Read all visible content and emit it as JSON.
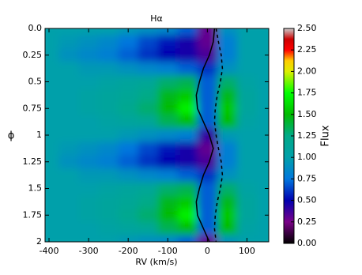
{
  "chart_data": {
    "type": "heatmap",
    "title": "Hα",
    "x_label": "RV (km/s)",
    "y_label": "ϕ",
    "colorbar_label": "Flux",
    "x": [
      -400,
      -350,
      -300,
      -250,
      -200,
      -150,
      -100,
      -50,
      0,
      50,
      100,
      150
    ],
    "y": [
      0,
      0.125,
      0.25,
      0.375,
      0.5,
      0.625,
      0.75,
      0.875,
      1,
      1.125,
      1.25,
      1.375,
      1.5,
      1.625,
      1.75,
      1.875,
      2
    ],
    "z": [
      [
        1.0,
        1.0,
        1.0,
        1.0,
        0.95,
        0.9,
        0.85,
        0.7,
        0.3,
        0.9,
        1.0,
        1.0
      ],
      [
        1.0,
        0.95,
        0.9,
        0.85,
        0.75,
        0.65,
        0.55,
        0.45,
        0.3,
        0.8,
        1.0,
        1.0
      ],
      [
        1.0,
        0.9,
        0.85,
        0.8,
        0.7,
        0.6,
        0.5,
        0.45,
        0.35,
        0.8,
        1.0,
        1.0
      ],
      [
        1.0,
        1.0,
        0.95,
        0.95,
        0.9,
        0.85,
        0.8,
        0.7,
        0.6,
        0.9,
        1.0,
        1.0
      ],
      [
        1.0,
        1.0,
        1.0,
        1.05,
        1.1,
        1.15,
        1.3,
        1.35,
        0.7,
        1.3,
        1.05,
        1.0
      ],
      [
        1.0,
        1.0,
        1.05,
        1.1,
        1.15,
        1.25,
        1.45,
        1.55,
        0.7,
        1.45,
        1.1,
        1.0
      ],
      [
        1.0,
        1.0,
        1.05,
        1.1,
        1.2,
        1.3,
        1.5,
        1.7,
        0.7,
        1.55,
        1.1,
        1.0
      ],
      [
        1.0,
        1.0,
        1.0,
        1.05,
        1.1,
        1.15,
        1.35,
        1.5,
        0.7,
        1.5,
        1.05,
        1.0
      ],
      [
        1.0,
        1.0,
        1.0,
        1.0,
        0.95,
        0.9,
        0.85,
        0.8,
        0.4,
        0.95,
        1.0,
        1.0
      ],
      [
        1.0,
        0.95,
        0.9,
        0.85,
        0.75,
        0.65,
        0.55,
        0.45,
        0.3,
        0.8,
        1.0,
        1.0
      ],
      [
        1.0,
        0.9,
        0.85,
        0.8,
        0.7,
        0.6,
        0.5,
        0.45,
        0.35,
        0.8,
        1.0,
        1.0
      ],
      [
        1.0,
        1.0,
        0.95,
        0.95,
        0.9,
        0.85,
        0.8,
        0.7,
        0.6,
        0.9,
        1.0,
        1.0
      ],
      [
        1.0,
        1.0,
        1.0,
        1.05,
        1.1,
        1.15,
        1.3,
        1.35,
        0.7,
        1.3,
        1.05,
        1.0
      ],
      [
        1.0,
        1.0,
        1.05,
        1.1,
        1.15,
        1.25,
        1.45,
        1.55,
        0.7,
        1.45,
        1.1,
        1.0
      ],
      [
        1.0,
        1.0,
        1.05,
        1.1,
        1.2,
        1.3,
        1.5,
        1.7,
        0.7,
        1.55,
        1.1,
        1.0
      ],
      [
        1.0,
        1.0,
        1.0,
        1.05,
        1.1,
        1.15,
        1.35,
        1.5,
        0.7,
        1.5,
        1.05,
        1.0
      ],
      [
        1.0,
        1.0,
        1.0,
        1.0,
        0.95,
        0.9,
        0.85,
        0.7,
        0.3,
        0.9,
        1.0,
        1.0
      ]
    ],
    "curves": [
      {
        "style": "solid",
        "color": "#000000",
        "x": [
          18,
          15,
          5,
          -10,
          -20,
          -28,
          -25,
          -10,
          5,
          15,
          5,
          -10,
          -20,
          -28,
          -25,
          -10,
          5
        ]
      },
      {
        "style": "dashed",
        "color": "#000000",
        "x": [
          22,
          28,
          35,
          38,
          33,
          25,
          20,
          18,
          22,
          28,
          35,
          38,
          33,
          25,
          20,
          18,
          22
        ]
      }
    ],
    "xlim": [
      -410,
      155
    ],
    "ylim": [
      2,
      0
    ],
    "clim": [
      0,
      2.5
    ],
    "xticks": [
      -400,
      -300,
      -200,
      -100,
      0,
      100
    ],
    "yticks": [
      {
        "value": 0,
        "label": "0.0"
      },
      0.25,
      0.5,
      0.75,
      1,
      1.25,
      1.5,
      1.75,
      2
    ],
    "cticks": [
      {
        "value": 0,
        "label": "0.00"
      },
      {
        "value": 0.25,
        "label": "0.25"
      },
      {
        "value": 0.5,
        "label": "0.50"
      },
      {
        "value": 0.75,
        "label": "0.75"
      },
      {
        "value": 1,
        "label": "1.00"
      },
      {
        "value": 1.25,
        "label": "1.25"
      },
      {
        "value": 1.5,
        "label": "1.50"
      },
      {
        "value": 1.75,
        "label": "1.75"
      },
      {
        "value": 2,
        "label": "2.00"
      },
      {
        "value": 2.25,
        "label": "2.25"
      },
      {
        "value": 2.5,
        "label": "2.50"
      }
    ]
  }
}
